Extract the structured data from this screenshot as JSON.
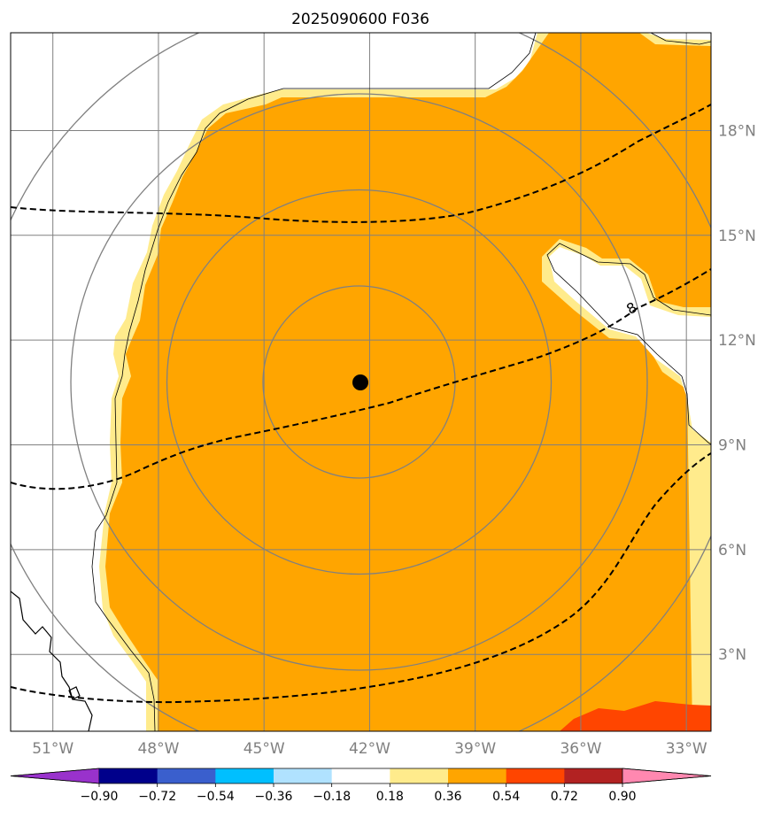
{
  "map": {
    "title": "2025090600 F036",
    "center": {
      "lon": -42.3,
      "lat": 10.8
    },
    "extent": {
      "lon": [
        -52.2,
        -32.3
      ],
      "lat": [
        0.8,
        20.8
      ]
    },
    "contour_label": "8",
    "lon_ticks": [
      {
        "value": -51,
        "label": "51°W"
      },
      {
        "value": -48,
        "label": "48°W"
      },
      {
        "value": -45,
        "label": "45°W"
      },
      {
        "value": -42,
        "label": "42°W"
      },
      {
        "value": -39,
        "label": "39°W"
      },
      {
        "value": -36,
        "label": "36°W"
      },
      {
        "value": -33,
        "label": "33°W"
      }
    ],
    "lat_ticks": [
      {
        "value": 18,
        "label": "18°N"
      },
      {
        "value": 15,
        "label": "15°N"
      },
      {
        "value": 12,
        "label": "12°N"
      },
      {
        "value": 9,
        "label": "9°N"
      },
      {
        "value": 6,
        "label": "6°N"
      },
      {
        "value": 3,
        "label": "3°N"
      }
    ],
    "range_rings": 4,
    "colors": {
      "fill_main": "#FFA500",
      "fill_edge": "#FFEB8C",
      "fill_high": "#FF4500",
      "grid": "#808080",
      "contour": "#000000"
    }
  },
  "colorbar": {
    "colors": [
      "#9932CC",
      "#00008B",
      "#3A5FCD",
      "#00BFFF",
      "#B0E2FF",
      "#FFFFFF",
      "#FFEB8C",
      "#FFA500",
      "#FF4500",
      "#B22222",
      "#FF88B0"
    ],
    "tick_labels": [
      "−0.90",
      "−0.72",
      "−0.54",
      "−0.36",
      "−0.18",
      "0.18",
      "0.36",
      "0.54",
      "0.72",
      "0.90"
    ]
  }
}
